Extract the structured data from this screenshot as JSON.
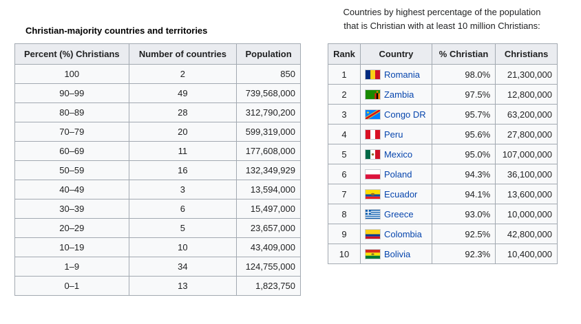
{
  "left": {
    "caption": "Christian-majority countries and territories",
    "headers": [
      "Percent (%) Christians",
      "Number of countries",
      "Population"
    ],
    "rows": [
      {
        "percent": "100",
        "count": "2",
        "population": "850"
      },
      {
        "percent": "90–99",
        "count": "49",
        "population": "739,568,000"
      },
      {
        "percent": "80–89",
        "count": "28",
        "population": "312,790,200"
      },
      {
        "percent": "70–79",
        "count": "20",
        "population": "599,319,000"
      },
      {
        "percent": "60–69",
        "count": "11",
        "population": "177,608,000"
      },
      {
        "percent": "50–59",
        "count": "16",
        "population": "132,349,929"
      },
      {
        "percent": "40–49",
        "count": "3",
        "population": "13,594,000"
      },
      {
        "percent": "30–39",
        "count": "6",
        "population": "15,497,000"
      },
      {
        "percent": "20–29",
        "count": "5",
        "population": "23,657,000"
      },
      {
        "percent": "10–19",
        "count": "10",
        "population": "43,409,000"
      },
      {
        "percent": "1–9",
        "count": "34",
        "population": "124,755,000"
      },
      {
        "percent": "0–1",
        "count": "13",
        "population": "1,823,750"
      }
    ]
  },
  "right": {
    "caption_line1": "Countries by highest percentage of the population",
    "caption_line2": "that is Christian with at least 10 million Christians:",
    "headers": [
      "Rank",
      "Country",
      "% Christian",
      "Christians"
    ],
    "rows": [
      {
        "rank": "1",
        "country": "Romania",
        "flag": "romania-flag-icon",
        "percent": "98.0%",
        "christians": "21,300,000"
      },
      {
        "rank": "2",
        "country": "Zambia",
        "flag": "zambia-flag-icon",
        "percent": "97.5%",
        "christians": "12,800,000"
      },
      {
        "rank": "3",
        "country": "Congo DR",
        "flag": "congo-dr-flag-icon",
        "percent": "95.7%",
        "christians": "63,200,000"
      },
      {
        "rank": "4",
        "country": "Peru",
        "flag": "peru-flag-icon",
        "percent": "95.6%",
        "christians": "27,800,000"
      },
      {
        "rank": "5",
        "country": "Mexico",
        "flag": "mexico-flag-icon",
        "percent": "95.0%",
        "christians": "107,000,000"
      },
      {
        "rank": "6",
        "country": "Poland",
        "flag": "poland-flag-icon",
        "percent": "94.3%",
        "christians": "36,100,000"
      },
      {
        "rank": "7",
        "country": "Ecuador",
        "flag": "ecuador-flag-icon",
        "percent": "94.1%",
        "christians": "13,600,000"
      },
      {
        "rank": "8",
        "country": "Greece",
        "flag": "greece-flag-icon",
        "percent": "93.0%",
        "christians": "10,000,000"
      },
      {
        "rank": "9",
        "country": "Colombia",
        "flag": "colombia-flag-icon",
        "percent": "92.5%",
        "christians": "42,800,000"
      },
      {
        "rank": "10",
        "country": "Bolivia",
        "flag": "bolivia-flag-icon",
        "percent": "92.3%",
        "christians": "10,400,000"
      }
    ]
  },
  "colors": {
    "link": "#0645ad",
    "header_bg": "#eaecf0",
    "table_bg": "#f8f9fa",
    "border": "#a2a9b1"
  }
}
